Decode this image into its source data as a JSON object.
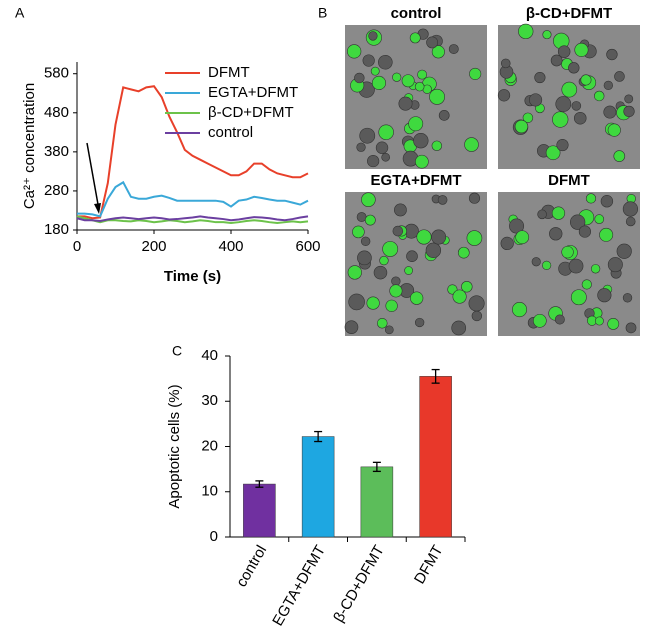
{
  "chart_data": [
    {
      "type": "line",
      "label": "A",
      "x_label": "Time (s)",
      "y_label": "Ca²⁺ concentration",
      "x": [
        0,
        20,
        40,
        60,
        80,
        100,
        120,
        140,
        160,
        180,
        200,
        220,
        240,
        260,
        280,
        300,
        320,
        340,
        360,
        380,
        400,
        420,
        440,
        460,
        480,
        500,
        520,
        540,
        560,
        580,
        600
      ],
      "series": [
        {
          "name": "DFMT",
          "color": "#e8402a",
          "values": [
            215,
            215,
            210,
            212,
            300,
            450,
            545,
            540,
            535,
            545,
            548,
            520,
            470,
            430,
            385,
            370,
            360,
            350,
            340,
            330,
            320,
            320,
            330,
            350,
            350,
            335,
            325,
            320,
            315,
            315,
            325
          ]
        },
        {
          "name": "EGTA+DFMT",
          "color": "#3aa8d8",
          "values": [
            222,
            222,
            220,
            215,
            260,
            290,
            302,
            265,
            260,
            260,
            265,
            268,
            262,
            255,
            255,
            255,
            255,
            255,
            255,
            252,
            240,
            255,
            258,
            265,
            262,
            258,
            255,
            255,
            250,
            245,
            255
          ]
        },
        {
          "name": "β-CD+DFMT",
          "color": "#6cc24a",
          "values": [
            215,
            210,
            205,
            200,
            205,
            205,
            203,
            202,
            205,
            203,
            200,
            202,
            205,
            203,
            200,
            202,
            205,
            203,
            200,
            200,
            198,
            200,
            203,
            205,
            203,
            200,
            198,
            200,
            202,
            200,
            202
          ]
        },
        {
          "name": "control",
          "color": "#6b3fa0",
          "values": [
            210,
            205,
            205,
            203,
            207,
            210,
            212,
            210,
            208,
            210,
            212,
            210,
            207,
            208,
            210,
            212,
            215,
            212,
            210,
            208,
            205,
            207,
            210,
            213,
            212,
            210,
            207,
            205,
            208,
            212,
            215
          ]
        }
      ],
      "xlim": [
        0,
        600
      ],
      "xticks": [
        0,
        200,
        400,
        600
      ],
      "ylim": [
        180,
        610
      ],
      "yticks": [
        180,
        280,
        380,
        480,
        580
      ],
      "legend": "upper right"
    },
    {
      "type": "bar",
      "label": "C",
      "y_label": "Apoptotic cells (%)",
      "categories": [
        "control",
        "EGTA+DFMT",
        "β-CD+DFMT",
        "DFMT"
      ],
      "values": [
        11.7,
        22.2,
        15.5,
        35.5
      ],
      "errors": [
        0.7,
        1.1,
        1.0,
        1.5
      ],
      "colors": [
        "#7030a0",
        "#1ea7e1",
        "#5cbd5a",
        "#e8382a"
      ],
      "ylim": [
        0,
        40
      ],
      "yticks": [
        0,
        10,
        20,
        30,
        40
      ]
    }
  ],
  "images": {
    "label": "B",
    "panels": [
      {
        "title": "control"
      },
      {
        "title": "β-CD+DFMT"
      },
      {
        "title": "EGTA+DFMT"
      },
      {
        "title": "DFMT"
      }
    ]
  }
}
